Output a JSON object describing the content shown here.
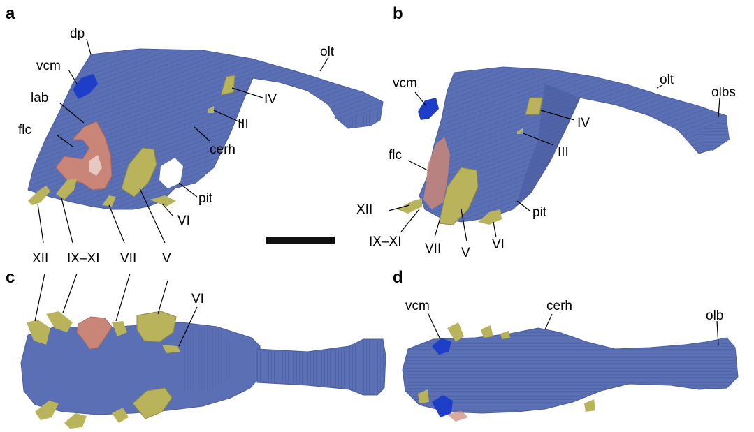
{
  "panels": {
    "a": {
      "letter": "a",
      "labels": {
        "dp": "dp",
        "vcm": "vcm",
        "lab": "lab",
        "flc": "flc",
        "olt": "olt",
        "IV": "IV",
        "III": "III",
        "cerh": "cerh",
        "pit": "pit",
        "VI": "VI",
        "XII": "XII",
        "IX_XI": "IX–XI",
        "VII": "VII",
        "V": "V"
      }
    },
    "b": {
      "letter": "b",
      "labels": {
        "vcm": "vcm",
        "olt": "olt",
        "olbs": "olbs",
        "IV": "IV",
        "III": "III",
        "flc": "flc",
        "pit": "pit",
        "XII": "XII",
        "IX_XI": "IX–XI",
        "VII": "VII",
        "V": "V",
        "VI": "VI"
      }
    },
    "c": {
      "letter": "c",
      "labels": {
        "VI": "VI"
      }
    },
    "d": {
      "letter": "d",
      "labels": {
        "vcm": "vcm",
        "cerh": "cerh",
        "olb": "olb"
      }
    }
  },
  "colors": {
    "brain": "#5b6fb5",
    "brain_dark": "#3f4f8f",
    "nerve": "#b9b45c",
    "labyrinth": "#c98678",
    "vein": "#1f3ec8",
    "scale_bar": "#111111"
  }
}
